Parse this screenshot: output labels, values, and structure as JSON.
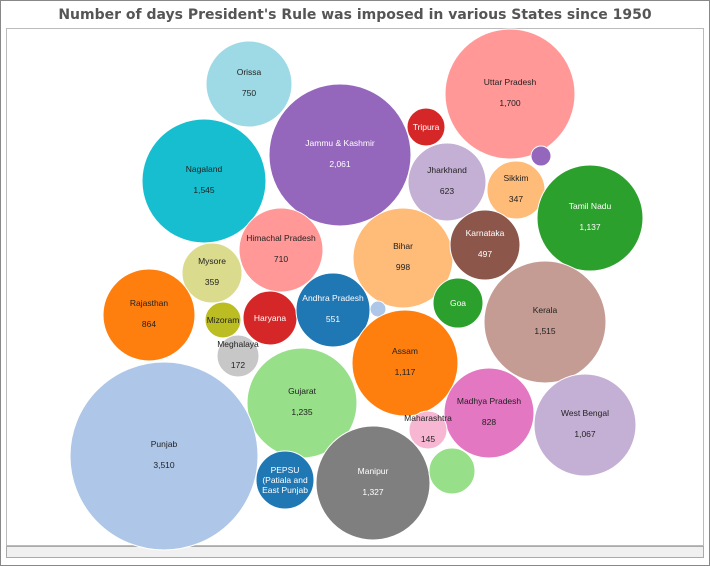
{
  "chart_data": {
    "type": "bubble",
    "title": "Number of days President's Rule was imposed in various States since 1950",
    "bubbles": [
      {
        "label": "Orissa",
        "value": 750,
        "display": "750",
        "color": "#9edae5"
      },
      {
        "label": "Uttar Pradesh",
        "value": 1700,
        "display": "1,700",
        "color": "#ff9896"
      },
      {
        "label": "Jammu & Kashmir",
        "value": 2061,
        "display": "2,061",
        "color": "#9467bd",
        "text": "#ffffff"
      },
      {
        "label": "Tripura",
        "value": null,
        "display": "",
        "color": "#d62728",
        "text": "#ffffff"
      },
      {
        "label": "",
        "value": null,
        "display": "",
        "color": "#9467bd"
      },
      {
        "label": "Nagaland",
        "value": 1545,
        "display": "1,545",
        "color": "#17becf"
      },
      {
        "label": "Jharkhand",
        "value": 623,
        "display": "623",
        "color": "#c5b0d5"
      },
      {
        "label": "Sikkim",
        "value": 347,
        "display": "347",
        "color": "#ffbb78"
      },
      {
        "label": "Tamil Nadu",
        "value": 1137,
        "display": "1,137",
        "color": "#2ca02c",
        "text": "#ffffff"
      },
      {
        "label": "Himachal Pradesh",
        "value": 710,
        "display": "710",
        "color": "#ff9896"
      },
      {
        "label": "Bihar",
        "value": 998,
        "display": "998",
        "color": "#ffbb78"
      },
      {
        "label": "Karnataka",
        "value": 497,
        "display": "497",
        "color": "#8c564b",
        "text": "#ffffff"
      },
      {
        "label": "Mysore",
        "value": 359,
        "display": "359",
        "color": "#dbdb8d"
      },
      {
        "label": "Rajasthan",
        "value": 864,
        "display": "864",
        "color": "#ff7f0e"
      },
      {
        "label": "Mizoram",
        "value": null,
        "display": "",
        "color": "#bcbd22"
      },
      {
        "label": "Haryana",
        "value": null,
        "display": "",
        "color": "#d62728",
        "text": "#ffffff"
      },
      {
        "label": "Andhra Pradesh",
        "value": 551,
        "display": "551",
        "color": "#1f77b4",
        "text": "#ffffff"
      },
      {
        "label": "",
        "value": null,
        "display": "",
        "color": "#aec7e8"
      },
      {
        "label": "Goa",
        "value": null,
        "display": "",
        "color": "#2ca02c",
        "text": "#ffffff"
      },
      {
        "label": "Kerala",
        "value": 1515,
        "display": "1,515",
        "color": "#c49c94"
      },
      {
        "label": "Meghalaya",
        "value": 172,
        "display": "172",
        "color": "#c7c7c7"
      },
      {
        "label": "Assam",
        "value": 1117,
        "display": "1,117",
        "color": "#ff7f0e"
      },
      {
        "label": "Gujarat",
        "value": 1235,
        "display": "1,235",
        "color": "#98df8a"
      },
      {
        "label": "Madhya Pradesh",
        "value": 828,
        "display": "828",
        "color": "#e377c2"
      },
      {
        "label": "West Bengal",
        "value": 1067,
        "display": "1,067",
        "color": "#c5b0d5"
      },
      {
        "label": "Maharashtra",
        "value": 145,
        "display": "145",
        "color": "#f7b6d2"
      },
      {
        "label": "Punjab",
        "value": 3510,
        "display": "3,510",
        "color": "#aec7e8"
      },
      {
        "label": "PEPSU (Patiala and East Punjab",
        "value": null,
        "display": "",
        "color": "#1f77b4",
        "text": "#ffffff"
      },
      {
        "label": "Manipur",
        "value": 1327,
        "display": "1,327",
        "color": "#7f7f7f",
        "text": "#ffffff"
      },
      {
        "label": "",
        "value": null,
        "display": "",
        "color": "#98df8a"
      }
    ]
  }
}
